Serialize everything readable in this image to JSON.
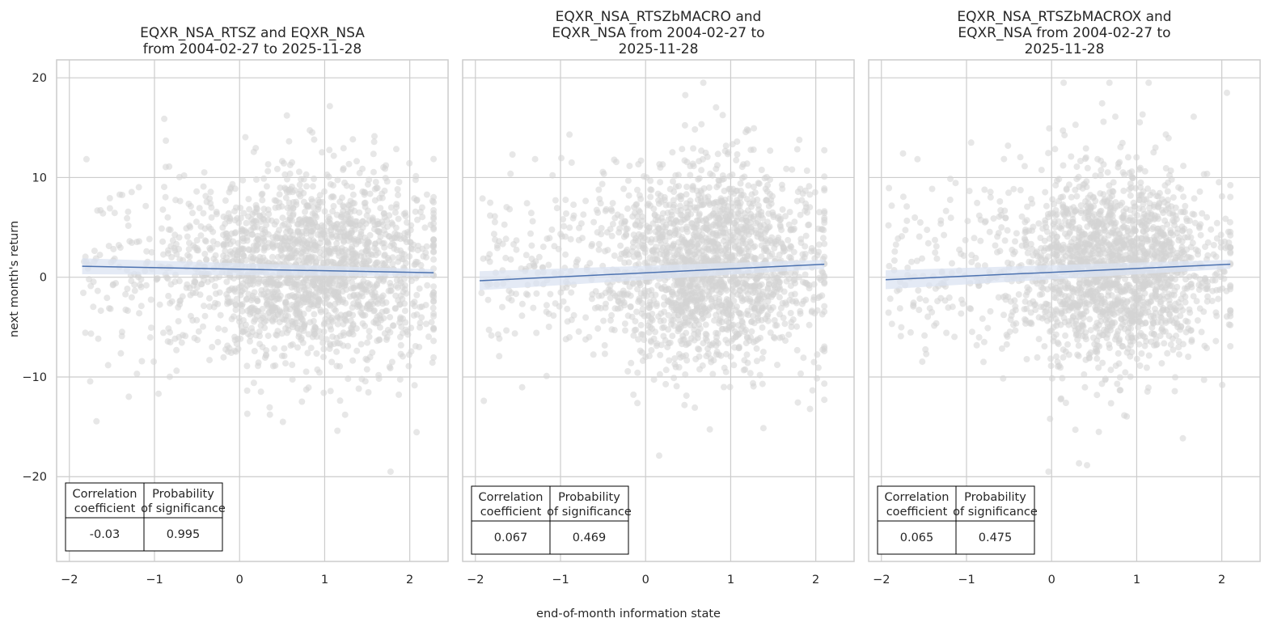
{
  "figure": {
    "xlabel": "end-of-month information state",
    "ylabel": "next month's return"
  },
  "chart_data": [
    {
      "type": "scatter",
      "title": [
        "EQXR_NSA_RTSZ and EQXR_NSA",
        "from 2004-02-27 to 2025-11-28"
      ],
      "xlim": [
        -2.15,
        2.45
      ],
      "ylim": [
        -28.5,
        21.8
      ],
      "xticks": [
        -2,
        -1,
        0,
        1,
        2
      ],
      "xtick_labels": [
        "−2",
        "−1",
        "0",
        "1",
        "2"
      ],
      "yticks": [
        20,
        10,
        0,
        -10,
        -20
      ],
      "ytick_labels": [
        "20",
        "10",
        "0",
        "−10",
        "−20"
      ],
      "x_range": [
        -1.85,
        2.28
      ],
      "regression": {
        "x": [
          -1.85,
          2.28
        ],
        "y": [
          1.1,
          0.45
        ]
      },
      "ci_band": {
        "lower": [
          0.3,
          0.1
        ],
        "upper": [
          1.9,
          0.8
        ]
      },
      "seed": 11,
      "n_points": 2000,
      "cluster": {
        "mx": 0.85,
        "sx": 0.72,
        "my": 0.9,
        "sy": 4.7
      },
      "table": {
        "headers": [
          "Correlation\ncoefficient",
          "Probability\nof significance"
        ],
        "values": [
          "-0.03",
          "0.995"
        ]
      },
      "colors": {
        "points": "#d3d3d3",
        "line": "#4c72b0",
        "band": "#dbe3f1"
      }
    },
    {
      "type": "scatter",
      "title": [
        "EQXR_NSA_RTSZbMACRO and",
        "EQXR_NSA from 2004-02-27 to",
        "2025-11-28"
      ],
      "xlim": [
        -2.15,
        2.45
      ],
      "ylim": [
        -28.5,
        21.8
      ],
      "xticks": [
        -2,
        -1,
        0,
        1,
        2
      ],
      "xtick_labels": [
        "−2",
        "−1",
        "0",
        "1",
        "2"
      ],
      "x_range": [
        -1.95,
        2.1
      ],
      "regression": {
        "x": [
          -1.95,
          2.1
        ],
        "y": [
          -0.35,
          1.3
        ]
      },
      "ci_band": {
        "lower": [
          -1.3,
          0.85
        ],
        "upper": [
          0.6,
          1.75
        ]
      },
      "seed": 23,
      "n_points": 2000,
      "cluster": {
        "mx": 0.75,
        "sx": 0.6,
        "my": 0.9,
        "sy": 4.7
      },
      "table": {
        "headers": [
          "Correlation\ncoefficient",
          "Probability\nof significance"
        ],
        "values": [
          "0.067",
          "0.469"
        ]
      },
      "colors": {
        "points": "#d3d3d3",
        "line": "#4c72b0",
        "band": "#dbe3f1"
      }
    },
    {
      "type": "scatter",
      "title": [
        "EQXR_NSA_RTSZbMACROX and",
        "EQXR_NSA from 2004-02-27 to",
        "2025-11-28"
      ],
      "xlim": [
        -2.15,
        2.45
      ],
      "ylim": [
        -28.5,
        21.8
      ],
      "xticks": [
        -2,
        -1,
        0,
        1,
        2
      ],
      "xtick_labels": [
        "−2",
        "−1",
        "0",
        "1",
        "2"
      ],
      "x_range": [
        -1.95,
        2.1
      ],
      "regression": {
        "x": [
          -1.95,
          2.1
        ],
        "y": [
          -0.25,
          1.3
        ]
      },
      "ci_band": {
        "lower": [
          -1.2,
          0.85
        ],
        "upper": [
          0.7,
          1.75
        ]
      },
      "seed": 37,
      "n_points": 2000,
      "cluster": {
        "mx": 0.75,
        "sx": 0.6,
        "my": 0.9,
        "sy": 4.7
      },
      "table": {
        "headers": [
          "Correlation\ncoefficient",
          "Probability\nof significance"
        ],
        "values": [
          "0.065",
          "0.475"
        ]
      },
      "colors": {
        "points": "#d3d3d3",
        "line": "#4c72b0",
        "band": "#dbe3f1"
      }
    }
  ]
}
